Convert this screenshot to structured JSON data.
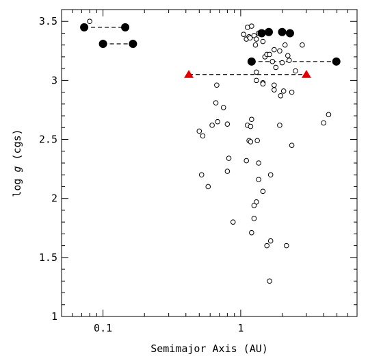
{
  "chart_data": {
    "type": "scatter",
    "xlabel": "Semimajor Axis (AU)",
    "ylabel": "log g (cgs)",
    "ylabel_parts": {
      "pre": "log ",
      "italic": "g",
      "post": " (cgs)"
    },
    "xscale": "log",
    "xlim": [
      0.05,
      7
    ],
    "ylim": [
      1,
      3.6
    ],
    "xticks": [
      0.1,
      1
    ],
    "xtick_labels": [
      "0.1",
      "1"
    ],
    "yticks": [
      1,
      1.5,
      2,
      2.5,
      3,
      3.5
    ],
    "ytick_labels": [
      "1",
      "1.5",
      "2",
      "2.5",
      "3",
      "3.5"
    ],
    "grid": false,
    "series": [
      {
        "marker": "open-circle",
        "color": "#000000",
        "points": [
          [
            0.08,
            3.5
          ],
          [
            1.05,
            3.39
          ],
          [
            1.1,
            3.35
          ],
          [
            1.12,
            3.45
          ],
          [
            1.15,
            3.37
          ],
          [
            1.17,
            3.36
          ],
          [
            1.2,
            3.46
          ],
          [
            1.25,
            3.38
          ],
          [
            1.28,
            3.3
          ],
          [
            1.3,
            3.35
          ],
          [
            1.35,
            3.4
          ],
          [
            1.45,
            3.33
          ],
          [
            1.5,
            3.2
          ],
          [
            1.55,
            3.22
          ],
          [
            1.62,
            3.22
          ],
          [
            1.7,
            3.16
          ],
          [
            1.75,
            3.26
          ],
          [
            1.8,
            3.11
          ],
          [
            1.92,
            3.25
          ],
          [
            2.0,
            3.15
          ],
          [
            2.1,
            3.3
          ],
          [
            2.2,
            3.21
          ],
          [
            2.25,
            3.17
          ],
          [
            2.5,
            3.08
          ],
          [
            2.8,
            3.3
          ],
          [
            1.3,
            3.07
          ],
          [
            1.3,
            3.0
          ],
          [
            1.45,
            2.98
          ],
          [
            1.45,
            2.97
          ],
          [
            1.75,
            2.96
          ],
          [
            1.75,
            2.92
          ],
          [
            1.95,
            2.87
          ],
          [
            2.05,
            2.91
          ],
          [
            2.35,
            2.9
          ],
          [
            0.67,
            2.96
          ],
          [
            0.66,
            2.81
          ],
          [
            0.75,
            2.77
          ],
          [
            0.68,
            2.65
          ],
          [
            0.62,
            2.62
          ],
          [
            0.8,
            2.63
          ],
          [
            0.5,
            2.57
          ],
          [
            0.53,
            2.53
          ],
          [
            1.12,
            2.62
          ],
          [
            1.18,
            2.61
          ],
          [
            1.2,
            2.67
          ],
          [
            1.15,
            2.49
          ],
          [
            1.18,
            2.48
          ],
          [
            1.32,
            2.49
          ],
          [
            1.92,
            2.62
          ],
          [
            2.35,
            2.45
          ],
          [
            4.0,
            2.64
          ],
          [
            4.35,
            2.71
          ],
          [
            0.82,
            2.34
          ],
          [
            1.1,
            2.32
          ],
          [
            1.35,
            2.3
          ],
          [
            0.8,
            2.23
          ],
          [
            1.35,
            2.16
          ],
          [
            1.65,
            2.2
          ],
          [
            0.52,
            2.2
          ],
          [
            0.58,
            2.1
          ],
          [
            1.45,
            2.06
          ],
          [
            1.3,
            1.97
          ],
          [
            1.25,
            1.94
          ],
          [
            1.25,
            1.83
          ],
          [
            0.88,
            1.8
          ],
          [
            1.2,
            1.71
          ],
          [
            1.65,
            1.64
          ],
          [
            1.55,
            1.6
          ],
          [
            2.15,
            1.6
          ],
          [
            1.62,
            1.3
          ]
        ]
      },
      {
        "marker": "filled-circle",
        "color": "#000000",
        "points": [
          [
            0.073,
            3.45
          ],
          [
            0.145,
            3.45
          ],
          [
            0.1,
            3.31
          ],
          [
            0.165,
            3.31
          ],
          [
            1.42,
            3.4
          ],
          [
            1.6,
            3.41
          ],
          [
            2.0,
            3.41
          ],
          [
            2.28,
            3.4
          ],
          [
            1.2,
            3.16
          ],
          [
            4.95,
            3.16
          ]
        ]
      },
      {
        "marker": "filled-triangle",
        "color": "#e00000",
        "points": [
          [
            0.42,
            3.05
          ],
          [
            3.0,
            3.05
          ]
        ]
      }
    ],
    "dashed_links": [
      {
        "from": [
          0.073,
          3.45
        ],
        "to": [
          0.145,
          3.45
        ]
      },
      {
        "from": [
          0.1,
          3.31
        ],
        "to": [
          0.165,
          3.31
        ]
      },
      {
        "from": [
          1.2,
          3.16
        ],
        "to": [
          4.95,
          3.16
        ]
      },
      {
        "from": [
          0.42,
          3.05
        ],
        "to": [
          3.0,
          3.05
        ]
      }
    ]
  }
}
